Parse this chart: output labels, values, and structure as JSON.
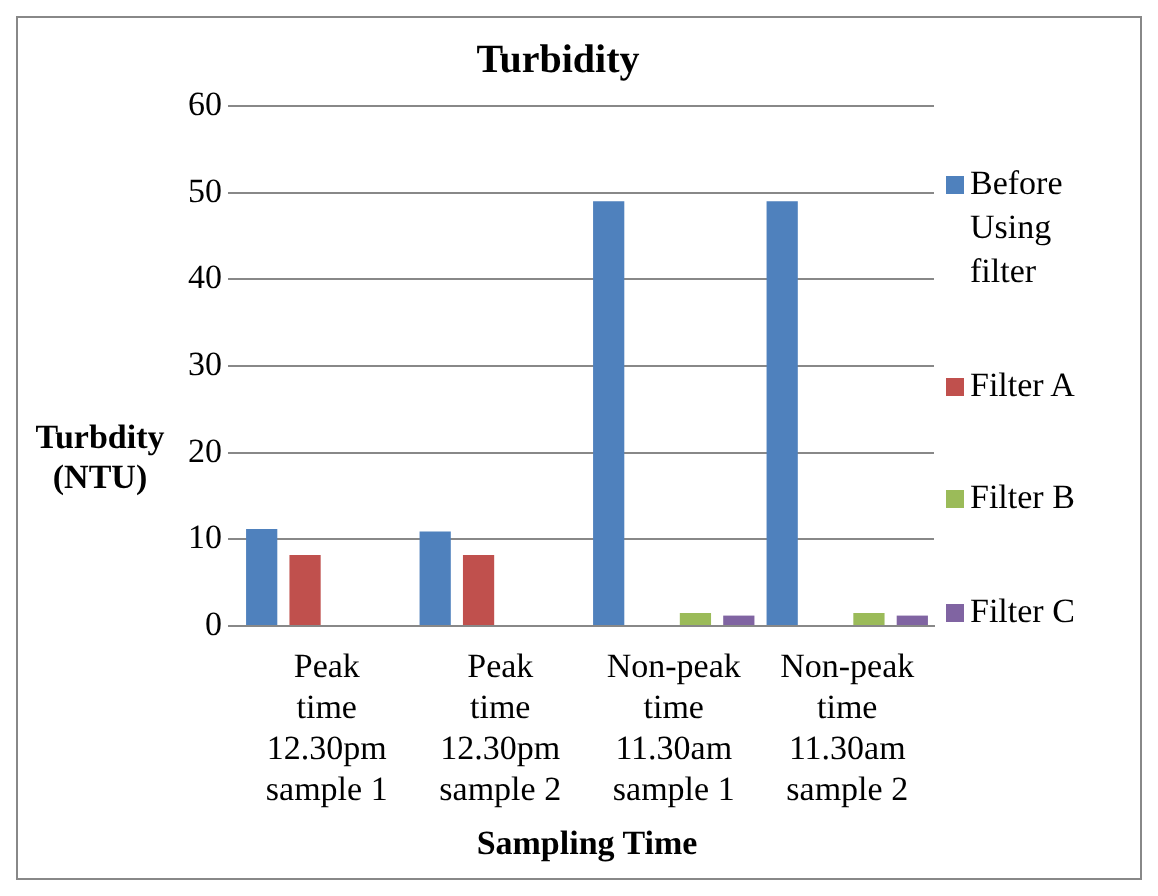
{
  "chart_data": {
    "type": "bar",
    "title": "Turbidity",
    "xlabel": "Sampling Time",
    "ylabel": "Turbdity (NTU)",
    "categories": [
      "Peak time 12.30pm sample 1",
      "Peak time 12.30pm sample 2",
      "Non-peak time 11.30am sample 1",
      "Non-peak time 11.30am sample 2"
    ],
    "series": [
      {
        "name": "Before Using filter",
        "color": "#4f81bd",
        "values": [
          11.2,
          10.9,
          49,
          49
        ]
      },
      {
        "name": "Filter A",
        "color": "#c0504d",
        "values": [
          8.2,
          8.2,
          0,
          0
        ]
      },
      {
        "name": "Filter B",
        "color": "#9bbb59",
        "values": [
          0,
          0,
          1.5,
          1.5
        ]
      },
      {
        "name": "Filter C",
        "color": "#8064a2",
        "values": [
          0,
          0,
          1.2,
          1.2
        ]
      }
    ],
    "ylim": [
      0,
      60
    ],
    "yticks": [
      0,
      10,
      20,
      30,
      40,
      50,
      60
    ],
    "grid": "y",
    "legend": "right"
  }
}
